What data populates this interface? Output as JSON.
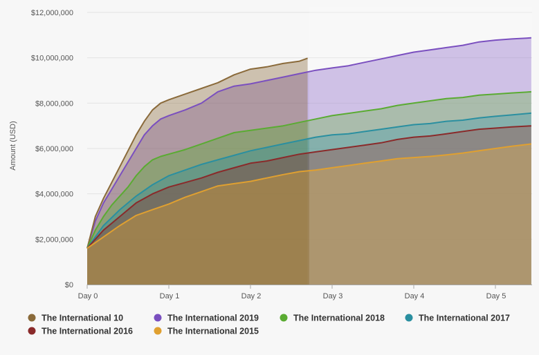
{
  "chart_data": {
    "type": "area",
    "title": "",
    "ylabel": "Amount (USD)",
    "xlabel": "",
    "x_ticks": [
      "Day 0",
      "Day 1",
      "Day 2",
      "Day 3",
      "Day 4",
      "Day 5"
    ],
    "y_ticks": [
      "$0",
      "$2,000,000",
      "$4,000,000",
      "$6,000,000",
      "$8,000,000",
      "$10,000,000",
      "$12,000,000"
    ],
    "xlim": [
      0,
      5.45
    ],
    "ylim": [
      0,
      12000000
    ],
    "grid": "horizontal",
    "legend_position": "bottom",
    "series": [
      {
        "name": "The International 10",
        "color": "#8a6a3a",
        "x": [
          0,
          0.1,
          0.2,
          0.3,
          0.4,
          0.5,
          0.6,
          0.7,
          0.8,
          0.9,
          1.0,
          1.2,
          1.4,
          1.6,
          1.8,
          2.0,
          2.2,
          2.4,
          2.6,
          2.7
        ],
        "y": [
          1600000,
          3000000,
          3800000,
          4500000,
          5200000,
          5900000,
          6600000,
          7200000,
          7700000,
          8000000,
          8150000,
          8400000,
          8650000,
          8900000,
          9250000,
          9500000,
          9600000,
          9750000,
          9850000,
          9980000
        ]
      },
      {
        "name": "The International 2019",
        "color": "#7a4fbf",
        "x": [
          0,
          0.1,
          0.2,
          0.3,
          0.4,
          0.5,
          0.6,
          0.7,
          0.8,
          0.9,
          1.0,
          1.2,
          1.4,
          1.6,
          1.8,
          2.0,
          2.2,
          2.4,
          2.6,
          2.8,
          3.0,
          3.2,
          3.4,
          3.6,
          3.8,
          4.0,
          4.2,
          4.4,
          4.6,
          4.8,
          5.0,
          5.2,
          5.44
        ],
        "y": [
          1600000,
          2800000,
          3600000,
          4200000,
          4800000,
          5400000,
          6000000,
          6600000,
          7000000,
          7300000,
          7450000,
          7700000,
          8000000,
          8500000,
          8750000,
          8850000,
          9000000,
          9150000,
          9300000,
          9450000,
          9550000,
          9650000,
          9800000,
          9950000,
          10100000,
          10250000,
          10350000,
          10450000,
          10550000,
          10700000,
          10780000,
          10830000,
          10880000
        ]
      },
      {
        "name": "The International 2018",
        "color": "#5aab32",
        "x": [
          0,
          0.1,
          0.2,
          0.3,
          0.4,
          0.5,
          0.6,
          0.7,
          0.8,
          0.9,
          1.0,
          1.2,
          1.4,
          1.6,
          1.8,
          2.0,
          2.2,
          2.4,
          2.6,
          2.8,
          3.0,
          3.2,
          3.4,
          3.6,
          3.8,
          4.0,
          4.2,
          4.4,
          4.6,
          4.8,
          5.0,
          5.2,
          5.44
        ],
        "y": [
          1600000,
          2400000,
          3000000,
          3500000,
          3900000,
          4300000,
          4800000,
          5200000,
          5500000,
          5650000,
          5750000,
          5950000,
          6200000,
          6450000,
          6700000,
          6800000,
          6900000,
          7000000,
          7150000,
          7300000,
          7450000,
          7550000,
          7650000,
          7750000,
          7900000,
          8000000,
          8100000,
          8200000,
          8250000,
          8350000,
          8400000,
          8450000,
          8500000
        ]
      },
      {
        "name": "The International 2017",
        "color": "#2a8fa0",
        "x": [
          0,
          0.2,
          0.4,
          0.6,
          0.8,
          1.0,
          1.2,
          1.4,
          1.6,
          1.8,
          2.0,
          2.2,
          2.4,
          2.6,
          2.8,
          3.0,
          3.2,
          3.4,
          3.6,
          3.8,
          4.0,
          4.2,
          4.4,
          4.6,
          4.8,
          5.0,
          5.2,
          5.44
        ],
        "y": [
          1600000,
          2600000,
          3300000,
          3900000,
          4400000,
          4800000,
          5050000,
          5300000,
          5500000,
          5700000,
          5900000,
          6050000,
          6200000,
          6350000,
          6500000,
          6600000,
          6650000,
          6750000,
          6850000,
          6950000,
          7050000,
          7100000,
          7200000,
          7250000,
          7350000,
          7420000,
          7480000,
          7560000
        ]
      },
      {
        "name": "The International 2016",
        "color": "#8a2a2a",
        "x": [
          0,
          0.2,
          0.4,
          0.6,
          0.8,
          1.0,
          1.2,
          1.4,
          1.6,
          1.8,
          2.0,
          2.2,
          2.4,
          2.6,
          2.8,
          3.0,
          3.2,
          3.4,
          3.6,
          3.8,
          4.0,
          4.2,
          4.4,
          4.6,
          4.8,
          5.0,
          5.2,
          5.44
        ],
        "y": [
          1600000,
          2400000,
          3000000,
          3600000,
          4000000,
          4300000,
          4500000,
          4700000,
          4950000,
          5150000,
          5350000,
          5450000,
          5600000,
          5750000,
          5850000,
          5950000,
          6050000,
          6150000,
          6250000,
          6400000,
          6500000,
          6550000,
          6650000,
          6750000,
          6850000,
          6900000,
          6950000,
          7000000
        ]
      },
      {
        "name": "The International 2015",
        "color": "#e0a030",
        "x": [
          0,
          0.2,
          0.4,
          0.6,
          0.8,
          1.0,
          1.2,
          1.4,
          1.6,
          1.8,
          2.0,
          2.2,
          2.4,
          2.6,
          2.8,
          3.0,
          3.2,
          3.4,
          3.6,
          3.8,
          4.0,
          4.2,
          4.4,
          4.6,
          4.8,
          5.0,
          5.2,
          5.44
        ],
        "y": [
          1600000,
          2100000,
          2600000,
          3050000,
          3300000,
          3550000,
          3850000,
          4100000,
          4350000,
          4450000,
          4550000,
          4700000,
          4850000,
          4980000,
          5050000,
          5150000,
          5250000,
          5350000,
          5450000,
          5550000,
          5600000,
          5650000,
          5720000,
          5800000,
          5900000,
          6000000,
          6100000,
          6200000
        ]
      }
    ]
  }
}
